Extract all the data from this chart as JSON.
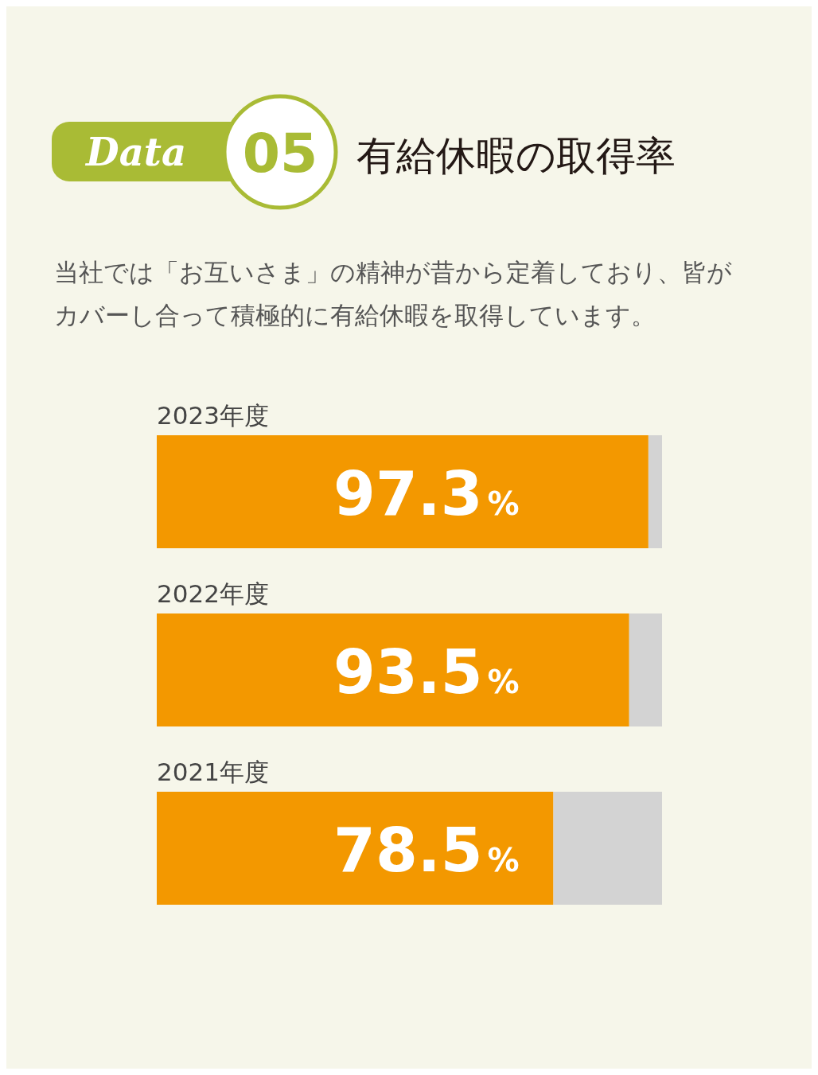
{
  "chart_data": {
    "type": "bar",
    "orientation": "horizontal",
    "stacked": true,
    "title": "有給休暇の取得率",
    "subtitle": "当社では「お互いさま」の精神が昔から定着しており、皆がカバーし合って積極的に有給休暇を取得しています。",
    "annotations": [
      "Data",
      "05"
    ],
    "categories": [
      "2023年度",
      "2022年度",
      "2021年度"
    ],
    "xlim": [
      0,
      100
    ],
    "tick_labels": "y",
    "series": [
      {
        "color": "#f39800",
        "values": [
          97.3,
          93.5,
          78.5
        ],
        "value_labels": [
          "97.3%",
          "93.5%",
          "78.5%"
        ]
      },
      {
        "color": "#d3d3d3",
        "values": [
          2.7,
          6.5,
          21.5
        ]
      }
    ]
  }
}
